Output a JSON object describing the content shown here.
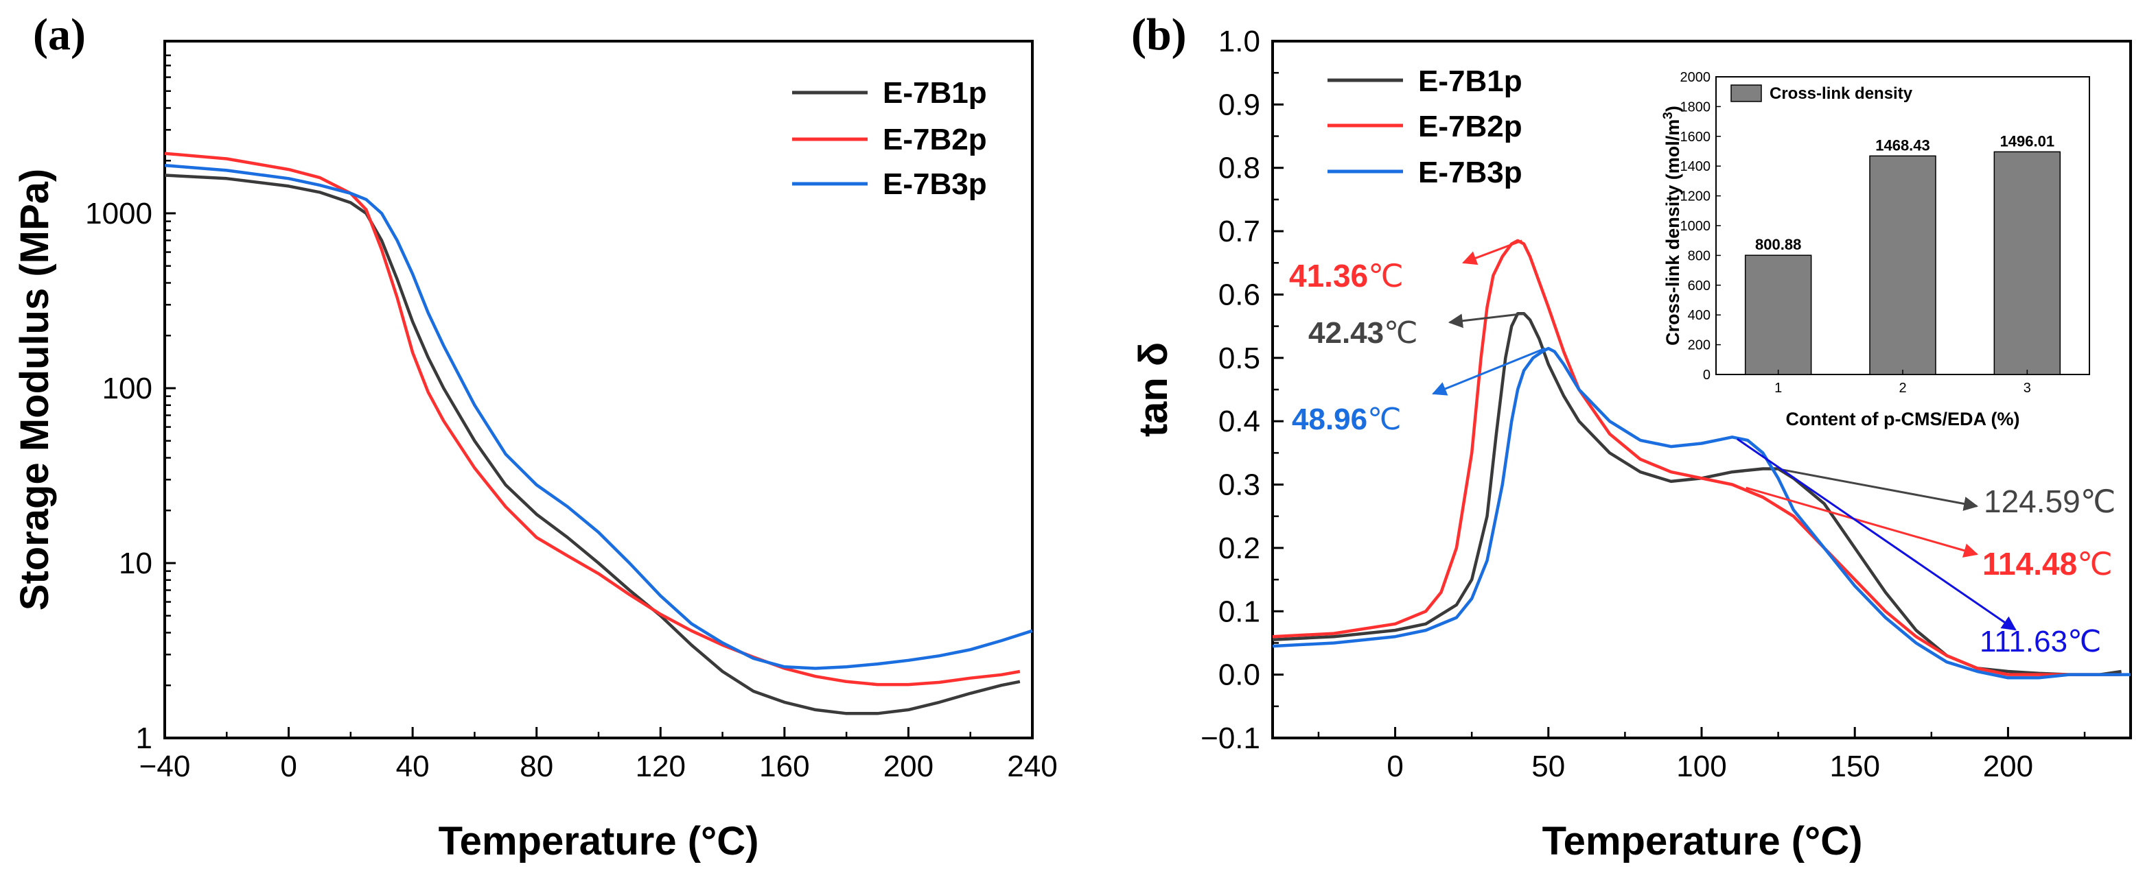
{
  "colors": {
    "E-7B1p": "#3a3a3a",
    "E-7B2p": "#ff3030",
    "E-7B3p": "#1a6ee0",
    "inset_bar": "#808080",
    "ann_dark": "#444444",
    "ann_red": "#ff3030",
    "ann_blue": "#1a6ee0",
    "ann_blue2": "#1010e0"
  },
  "panel_a": {
    "label": "(a)",
    "legend": [
      "E-7B1p",
      "E-7B2p",
      "E-7B3p"
    ]
  },
  "panel_b": {
    "label": "(b)",
    "legend": [
      "E-7B1p",
      "E-7B2p",
      "E-7B3p"
    ]
  },
  "chart_data": [
    {
      "id": "a",
      "type": "line",
      "title": "(a)",
      "xlabel": "Temperature (°C)",
      "ylabel": "Storage Modulus (MPa)",
      "xlim": [
        -40,
        240
      ],
      "ylim": [
        1,
        8000
      ],
      "yscale": "log",
      "xticks": [
        -40,
        0,
        40,
        80,
        120,
        160,
        200,
        240
      ],
      "xtick_labels": [
        "−40",
        "0",
        "40",
        "80",
        "120",
        "160",
        "200",
        "240"
      ],
      "yticks": [
        1,
        10,
        100,
        1000
      ],
      "ytick_labels": [
        "1",
        "10",
        "100",
        "1000"
      ],
      "legend_position": "top-right",
      "series": [
        {
          "name": "E-7B1p",
          "x": [
            -40,
            -20,
            0,
            10,
            20,
            25,
            30,
            35,
            40,
            45,
            50,
            60,
            70,
            80,
            90,
            100,
            110,
            120,
            130,
            140,
            150,
            160,
            170,
            180,
            190,
            200,
            210,
            220,
            230,
            236
          ],
          "y": [
            1650,
            1580,
            1430,
            1320,
            1150,
            1000,
            700,
            420,
            240,
            150,
            100,
            50,
            28,
            19,
            14,
            10,
            7,
            5,
            3.4,
            2.4,
            1.85,
            1.6,
            1.45,
            1.38,
            1.38,
            1.45,
            1.6,
            1.8,
            2,
            2.1
          ]
        },
        {
          "name": "E-7B2p",
          "x": [
            -40,
            -20,
            0,
            10,
            20,
            25,
            30,
            35,
            40,
            45,
            50,
            60,
            70,
            80,
            90,
            100,
            110,
            120,
            130,
            140,
            150,
            160,
            170,
            180,
            190,
            200,
            210,
            220,
            230,
            236
          ],
          "y": [
            2200,
            2050,
            1780,
            1600,
            1300,
            1050,
            620,
            330,
            160,
            95,
            65,
            35,
            21,
            14,
            11,
            8.7,
            6.6,
            5.1,
            4.1,
            3.4,
            2.9,
            2.5,
            2.25,
            2.1,
            2.02,
            2.02,
            2.08,
            2.2,
            2.3,
            2.4
          ]
        },
        {
          "name": "E-7B3p",
          "x": [
            -40,
            -20,
            0,
            10,
            20,
            25,
            30,
            35,
            40,
            45,
            50,
            60,
            70,
            80,
            90,
            100,
            110,
            120,
            130,
            140,
            150,
            160,
            170,
            180,
            190,
            200,
            210,
            220,
            230,
            240
          ],
          "y": [
            1880,
            1760,
            1580,
            1450,
            1300,
            1200,
            1000,
            700,
            450,
            270,
            175,
            80,
            42,
            28,
            21,
            15,
            10,
            6.5,
            4.5,
            3.5,
            2.85,
            2.55,
            2.5,
            2.55,
            2.65,
            2.78,
            2.95,
            3.2,
            3.6,
            4.1
          ]
        }
      ]
    },
    {
      "id": "b",
      "type": "line",
      "title": "(b)",
      "xlabel": "Temperature (°C)",
      "ylabel": "tan δ",
      "xlim": [
        -40,
        240
      ],
      "ylim": [
        -0.1,
        1.0
      ],
      "xticks": [
        0,
        50,
        100,
        150,
        200
      ],
      "xtick_labels": [
        "0",
        "50",
        "100",
        "150",
        "200"
      ],
      "yticks": [
        -0.1,
        0.0,
        0.1,
        0.2,
        0.3,
        0.4,
        0.5,
        0.6,
        0.7,
        0.8,
        0.9,
        1.0
      ],
      "ytick_labels": [
        "−0.1",
        "0.0",
        "0.1",
        "0.2",
        "0.3",
        "0.4",
        "0.5",
        "0.6",
        "0.7",
        "0.8",
        "0.9",
        "1.0"
      ],
      "legend_position": "top-left",
      "series": [
        {
          "name": "E-7B1p",
          "x": [
            -40,
            -20,
            0,
            10,
            20,
            25,
            30,
            33,
            36,
            38,
            40,
            42,
            44,
            47,
            50,
            55,
            60,
            70,
            80,
            90,
            100,
            110,
            120,
            125,
            130,
            140,
            150,
            160,
            170,
            180,
            190,
            200,
            210,
            220,
            230,
            237
          ],
          "y": [
            0.055,
            0.06,
            0.07,
            0.08,
            0.11,
            0.15,
            0.25,
            0.38,
            0.5,
            0.55,
            0.57,
            0.57,
            0.56,
            0.53,
            0.49,
            0.44,
            0.4,
            0.35,
            0.32,
            0.305,
            0.31,
            0.32,
            0.325,
            0.325,
            0.31,
            0.27,
            0.2,
            0.13,
            0.07,
            0.03,
            0.01,
            0.005,
            0.002,
            0.0,
            0.0,
            0.005
          ]
        },
        {
          "name": "E-7B2p",
          "x": [
            -40,
            -20,
            0,
            10,
            15,
            20,
            25,
            28,
            30,
            32,
            35,
            38,
            40,
            42,
            44,
            47,
            50,
            55,
            60,
            70,
            80,
            90,
            100,
            110,
            120,
            130,
            140,
            150,
            160,
            170,
            180,
            190,
            200,
            210,
            220,
            230,
            237
          ],
          "y": [
            0.06,
            0.065,
            0.08,
            0.1,
            0.13,
            0.2,
            0.35,
            0.5,
            0.58,
            0.63,
            0.66,
            0.68,
            0.685,
            0.68,
            0.66,
            0.62,
            0.58,
            0.51,
            0.45,
            0.38,
            0.34,
            0.32,
            0.31,
            0.3,
            0.28,
            0.25,
            0.2,
            0.15,
            0.1,
            0.06,
            0.03,
            0.01,
            0.0,
            0.0,
            0.0,
            0.0,
            0.0
          ]
        },
        {
          "name": "E-7B3p",
          "x": [
            -40,
            -20,
            0,
            10,
            20,
            25,
            30,
            35,
            38,
            40,
            42,
            45,
            48,
            50,
            52,
            55,
            60,
            70,
            80,
            90,
            100,
            105,
            110,
            115,
            120,
            125,
            130,
            140,
            150,
            160,
            170,
            180,
            190,
            200,
            210,
            220,
            230,
            240
          ],
          "y": [
            0.045,
            0.05,
            0.06,
            0.07,
            0.09,
            0.12,
            0.18,
            0.3,
            0.4,
            0.45,
            0.48,
            0.5,
            0.51,
            0.515,
            0.51,
            0.49,
            0.45,
            0.4,
            0.37,
            0.36,
            0.365,
            0.37,
            0.375,
            0.37,
            0.35,
            0.31,
            0.26,
            0.2,
            0.14,
            0.09,
            0.05,
            0.02,
            0.005,
            -0.005,
            -0.005,
            0.0,
            0.0,
            0.0
          ]
        }
      ],
      "annotations": [
        {
          "id": "peak-b2",
          "text": "41.36",
          "unit": "℃",
          "series": "E-7B2p",
          "point": [
            41.36,
            0.685
          ],
          "style": "ann_red"
        },
        {
          "id": "peak-b1",
          "text": "42.43",
          "unit": "℃",
          "series": "E-7B1p",
          "point": [
            42.43,
            0.57
          ],
          "style": "ann_dark"
        },
        {
          "id": "peak-b3",
          "text": "48.96",
          "unit": "℃",
          "series": "E-7B3p",
          "point": [
            48.96,
            0.515
          ],
          "style": "ann_blue"
        },
        {
          "id": "hump-b1",
          "text": "124.59",
          "unit": "℃",
          "series": "E-7B1p",
          "point": [
            124.59,
            0.325
          ],
          "style": "ann_dark"
        },
        {
          "id": "hump-b2",
          "text": "114.48",
          "unit": "℃",
          "series": "E-7B2p",
          "point": [
            114.48,
            0.295
          ],
          "style": "ann_red"
        },
        {
          "id": "hump-b3",
          "text": "111.63",
          "unit": "℃",
          "series": "E-7B3p",
          "point": [
            111.63,
            0.372
          ],
          "style": "ann_blue2"
        }
      ]
    },
    {
      "id": "b-inset",
      "type": "bar",
      "title": "",
      "legend": "Cross-link density",
      "xlabel": "Content of p-CMS/EDA (%)",
      "ylabel": "Cross-link density (mol/m3)",
      "ylabel_parts": [
        "Cross-link density (mol/m",
        "3",
        ")"
      ],
      "categories": [
        "1",
        "2",
        "3"
      ],
      "values": [
        800.88,
        1468.43,
        1496.01
      ],
      "value_labels": [
        "800.88",
        "1468.43",
        "1496.01"
      ],
      "ylim": [
        0,
        2000
      ],
      "yticks": [
        0,
        200,
        400,
        600,
        800,
        1000,
        1200,
        1400,
        1600,
        1800,
        2000
      ],
      "ytick_labels": [
        "0",
        "200",
        "400",
        "600",
        "800",
        "1000",
        "1200",
        "1400",
        "1600",
        "1800",
        "2000"
      ]
    }
  ]
}
